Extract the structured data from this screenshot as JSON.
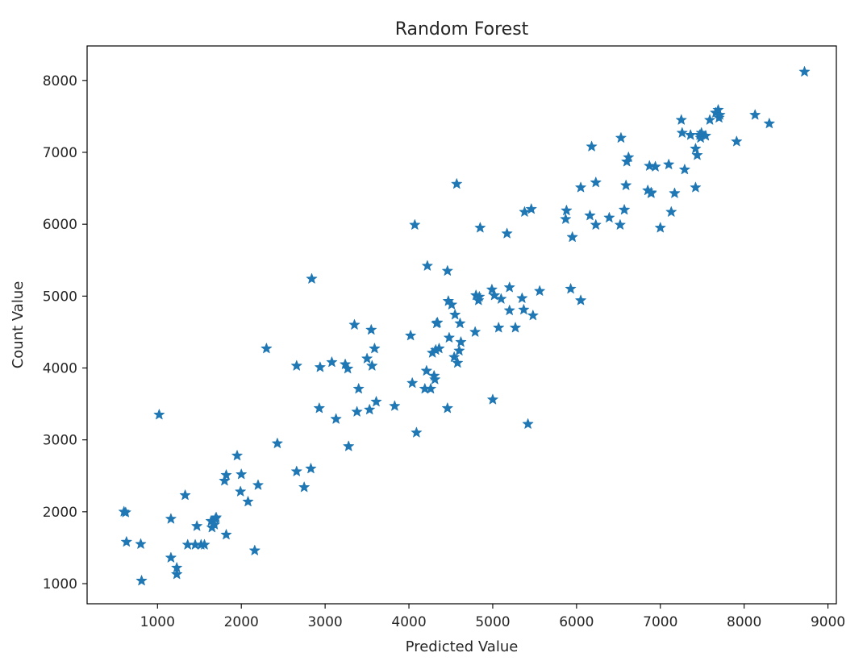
{
  "chart_data": {
    "type": "scatter",
    "title": "Random Forest",
    "xlabel": "Predicted Value",
    "ylabel": "Count Value",
    "xlim": [
      160,
      9100
    ],
    "ylim": [
      720,
      8480
    ],
    "xticks": [
      1000,
      2000,
      3000,
      4000,
      5000,
      6000,
      7000,
      8000,
      9000
    ],
    "yticks": [
      1000,
      2000,
      3000,
      4000,
      5000,
      6000,
      7000,
      8000
    ],
    "marker": "star",
    "color": "#1f77b4",
    "grid": false,
    "points": [
      [
        600,
        2000
      ],
      [
        620,
        1990
      ],
      [
        630,
        1580
      ],
      [
        800,
        1550
      ],
      [
        810,
        1040
      ],
      [
        1020,
        3350
      ],
      [
        1160,
        1900
      ],
      [
        1160,
        1360
      ],
      [
        1230,
        1220
      ],
      [
        1230,
        1130
      ],
      [
        1330,
        2230
      ],
      [
        1360,
        1540
      ],
      [
        1450,
        1540
      ],
      [
        1470,
        1800
      ],
      [
        1520,
        1540
      ],
      [
        1560,
        1540
      ],
      [
        1640,
        1870
      ],
      [
        1650,
        1780
      ],
      [
        1680,
        1820
      ],
      [
        1690,
        1900
      ],
      [
        1700,
        1920
      ],
      [
        1800,
        2430
      ],
      [
        1820,
        2510
      ],
      [
        1820,
        1680
      ],
      [
        1950,
        2780
      ],
      [
        1990,
        2280
      ],
      [
        2000,
        2520
      ],
      [
        2080,
        2140
      ],
      [
        2160,
        1460
      ],
      [
        2200,
        2370
      ],
      [
        2300,
        4270
      ],
      [
        2430,
        2950
      ],
      [
        2660,
        4030
      ],
      [
        2660,
        2560
      ],
      [
        2750,
        2340
      ],
      [
        2830,
        2600
      ],
      [
        2840,
        5240
      ],
      [
        2930,
        3440
      ],
      [
        2940,
        4010
      ],
      [
        3080,
        4080
      ],
      [
        3130,
        3290
      ],
      [
        3240,
        4050
      ],
      [
        3270,
        3990
      ],
      [
        3280,
        2910
      ],
      [
        3350,
        4600
      ],
      [
        3380,
        3390
      ],
      [
        3400,
        3710
      ],
      [
        3500,
        4130
      ],
      [
        3530,
        3420
      ],
      [
        3550,
        4530
      ],
      [
        3560,
        4030
      ],
      [
        3590,
        4270
      ],
      [
        3610,
        3530
      ],
      [
        3830,
        3470
      ],
      [
        4020,
        4450
      ],
      [
        4040,
        3790
      ],
      [
        4070,
        5990
      ],
      [
        4090,
        3100
      ],
      [
        4190,
        3710
      ],
      [
        4210,
        3960
      ],
      [
        4220,
        5420
      ],
      [
        4260,
        3710
      ],
      [
        4280,
        4210
      ],
      [
        4300,
        3890
      ],
      [
        4310,
        3840
      ],
      [
        4320,
        4250
      ],
      [
        4330,
        4620
      ],
      [
        4340,
        4630
      ],
      [
        4360,
        4270
      ],
      [
        4460,
        5350
      ],
      [
        4460,
        3440
      ],
      [
        4470,
        4930
      ],
      [
        4480,
        4420
      ],
      [
        4510,
        4880
      ],
      [
        4540,
        4150
      ],
      [
        4550,
        4740
      ],
      [
        4570,
        6560
      ],
      [
        4580,
        4070
      ],
      [
        4600,
        4240
      ],
      [
        4610,
        4620
      ],
      [
        4620,
        4360
      ],
      [
        4790,
        4500
      ],
      [
        4800,
        5010
      ],
      [
        4830,
        4940
      ],
      [
        4840,
        4990
      ],
      [
        4850,
        5950
      ],
      [
        4990,
        5090
      ],
      [
        5000,
        3560
      ],
      [
        5020,
        5010
      ],
      [
        5070,
        4560
      ],
      [
        5100,
        4960
      ],
      [
        5170,
        5870
      ],
      [
        5200,
        4800
      ],
      [
        5200,
        5120
      ],
      [
        5270,
        4560
      ],
      [
        5350,
        4970
      ],
      [
        5370,
        4810
      ],
      [
        5380,
        6170
      ],
      [
        5420,
        3220
      ],
      [
        5460,
        6210
      ],
      [
        5480,
        4730
      ],
      [
        5560,
        5070
      ],
      [
        5870,
        6070
      ],
      [
        5880,
        6190
      ],
      [
        5930,
        5100
      ],
      [
        5950,
        5820
      ],
      [
        6050,
        4940
      ],
      [
        6050,
        6510
      ],
      [
        6160,
        6120
      ],
      [
        6180,
        7080
      ],
      [
        6230,
        5990
      ],
      [
        6230,
        6580
      ],
      [
        6390,
        6090
      ],
      [
        6520,
        5990
      ],
      [
        6530,
        7200
      ],
      [
        6570,
        6200
      ],
      [
        6590,
        6540
      ],
      [
        6600,
        6870
      ],
      [
        6620,
        6930
      ],
      [
        6850,
        6470
      ],
      [
        6870,
        6810
      ],
      [
        6890,
        6430
      ],
      [
        6890,
        6440
      ],
      [
        6940,
        6800
      ],
      [
        7000,
        5950
      ],
      [
        7100,
        6830
      ],
      [
        7130,
        6170
      ],
      [
        7170,
        6430
      ],
      [
        7250,
        7450
      ],
      [
        7260,
        7270
      ],
      [
        7290,
        6760
      ],
      [
        7360,
        7240
      ],
      [
        7420,
        6510
      ],
      [
        7420,
        7050
      ],
      [
        7440,
        6960
      ],
      [
        7470,
        7240
      ],
      [
        7480,
        7200
      ],
      [
        7490,
        7270
      ],
      [
        7540,
        7230
      ],
      [
        7590,
        7450
      ],
      [
        7660,
        7550
      ],
      [
        7690,
        7590
      ],
      [
        7700,
        7480
      ],
      [
        7710,
        7520
      ],
      [
        7910,
        7150
      ],
      [
        8130,
        7520
      ],
      [
        8300,
        7400
      ],
      [
        8720,
        8120
      ]
    ]
  }
}
